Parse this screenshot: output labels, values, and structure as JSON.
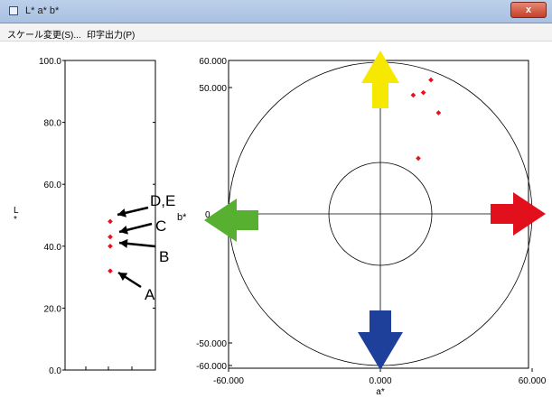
{
  "window": {
    "title": "L* a* b*",
    "close_label": "x"
  },
  "menu": {
    "items": [
      "スケール変更(S)...",
      "印字出力(P)"
    ]
  },
  "lightness_plot": {
    "axis_label": "L*",
    "ylim": [
      0,
      100
    ],
    "ticks": [
      "100.0",
      "80.0",
      "60.0",
      "40.0",
      "20.0",
      "0.0"
    ],
    "points": [
      {
        "id": "A",
        "L": 32
      },
      {
        "id": "B",
        "L": 40
      },
      {
        "id": "C",
        "L": 43
      },
      {
        "id": "D,E",
        "L": 48
      }
    ],
    "annotations": [
      "A",
      "B",
      "C",
      "D,E"
    ],
    "point_color": "#e8101c"
  },
  "ab_plot": {
    "x_label": "a*",
    "y_label": "b*",
    "x_ticks": [
      "-60.000",
      "0.000",
      "60.000"
    ],
    "y_ticks": [
      "60.000",
      "50.000",
      "-50.000",
      "-60.000"
    ],
    "zero_tick": "0",
    "range": [
      -60,
      60
    ],
    "points": [
      {
        "a": 20,
        "b": 53
      },
      {
        "a": 13,
        "b": 47
      },
      {
        "a": 17,
        "b": 48
      },
      {
        "a": 23,
        "b": 40
      },
      {
        "a": 15,
        "b": 22
      }
    ],
    "arrows": [
      {
        "name": "up-arrow-icon",
        "color": "#f6e800"
      },
      {
        "name": "down-arrow-icon",
        "color": "#1e3f9a"
      },
      {
        "name": "left-arrow-icon",
        "color": "#58b031"
      },
      {
        "name": "right-arrow-icon",
        "color": "#e2101c"
      }
    ],
    "point_color": "#e8101c"
  }
}
